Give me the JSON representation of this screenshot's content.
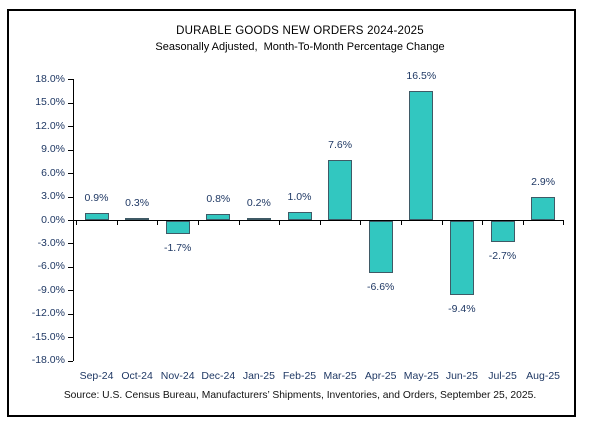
{
  "chart_data": {
    "type": "bar",
    "title": "DURABLE GOODS NEW ORDERS 2024-2025",
    "subtitle": "Seasonally Adjusted,  Month-To-Month Percentage Change",
    "categories": [
      "Sep-24",
      "Oct-24",
      "Nov-24",
      "Dec-24",
      "Jan-25",
      "Feb-25",
      "Mar-25",
      "Apr-25",
      "May-25",
      "Jun-25",
      "Jul-25",
      "Aug-25"
    ],
    "values": [
      0.9,
      0.3,
      -1.7,
      0.8,
      0.2,
      1.0,
      7.6,
      -6.6,
      16.5,
      -9.4,
      -2.7,
      2.9
    ],
    "data_labels": [
      "0.9%",
      "0.3%",
      "-1.7%",
      "0.8%",
      "0.2%",
      "1.0%",
      "7.6%",
      "-6.6%",
      "16.5%",
      "-9.4%",
      "-2.7%",
      "2.9%"
    ],
    "y_ticks": [
      "18.0%",
      "15.0%",
      "12.0%",
      "9.0%",
      "6.0%",
      "3.0%",
      "0.0%",
      "-3.0%",
      "-6.0%",
      "-9.0%",
      "-12.0%",
      "-15.0%",
      "-18.0%"
    ],
    "ylim": [
      -18,
      18
    ],
    "grid": false,
    "legend": null,
    "bar_color": "#32C7C0",
    "bar_border_color": "#3F5A66",
    "label_color": "#1F3864",
    "axis_color": "#000000"
  },
  "source_note": "Source: U.S. Census Bureau, Manufacturers’ Shipments, Inventories, and Orders, September 25, 2025."
}
